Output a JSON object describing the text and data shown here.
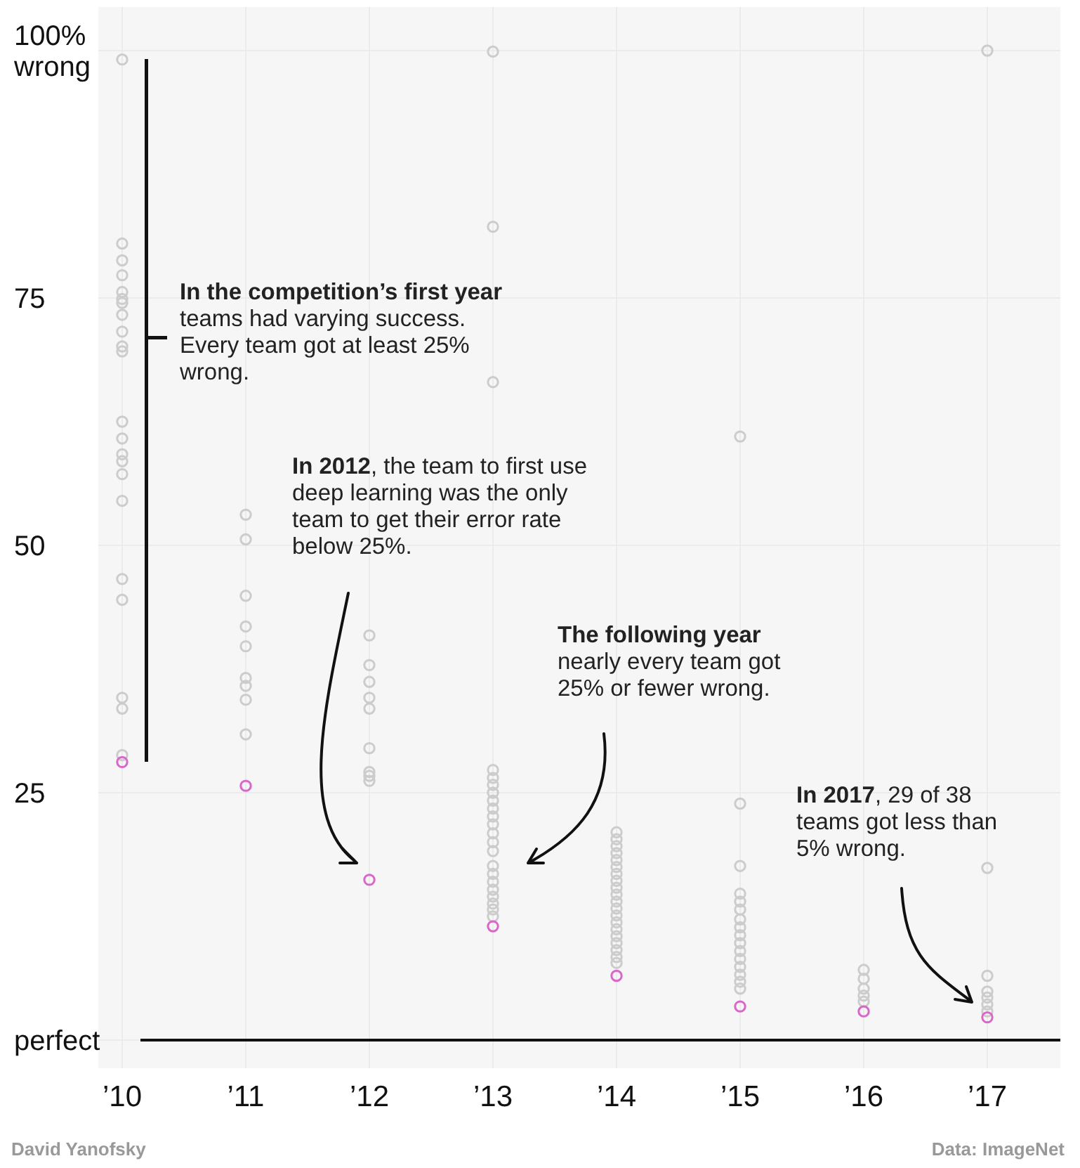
{
  "chart_data": {
    "type": "scatter",
    "categories": [
      "’10",
      "’11",
      "’12",
      "’13",
      "’14",
      "’15",
      "’16",
      "’17"
    ],
    "ylim": [
      0,
      100
    ],
    "yticks": [
      {
        "value": 0,
        "label": "perfect"
      },
      25,
      50,
      75,
      {
        "value": 100,
        "label": "100%\nwrong"
      }
    ],
    "grid": true,
    "marker": "circle",
    "series": [
      {
        "color": "#cccccc",
        "x": [
          "’10",
          "’10",
          "’10",
          "’10",
          "’10",
          "’10",
          "’10",
          "’10",
          "’10",
          "’10",
          "’10",
          "’10",
          "’10",
          "’10",
          "’10",
          "’10",
          "’10",
          "’10",
          "’10",
          "’10",
          "’10",
          "’10",
          "’11",
          "’11",
          "’11",
          "’11",
          "’11",
          "’11",
          "’11",
          "’11",
          "’11",
          "’12",
          "’12",
          "’12",
          "’12",
          "’12",
          "’12",
          "’12",
          "’12",
          "’12",
          "’13",
          "’13",
          "’13",
          "’13",
          "’13",
          "’13",
          "’13",
          "’13",
          "’13",
          "’13",
          "’13",
          "’13",
          "’13",
          "’13",
          "’13",
          "’13",
          "’13",
          "’13",
          "’13",
          "’13",
          "’13",
          "’13",
          "’14",
          "’14",
          "’14",
          "’14",
          "’14",
          "’14",
          "’14",
          "’14",
          "’14",
          "’14",
          "’14",
          "’14",
          "’14",
          "’14",
          "’14",
          "’14",
          "’14",
          "’14",
          "’14",
          "’14",
          "’15",
          "’15",
          "’15",
          "’15",
          "’15",
          "’15",
          "’15",
          "’15",
          "’15",
          "’15",
          "’15",
          "’15",
          "’15",
          "’15",
          "’15",
          "’15",
          "’16",
          "’16",
          "’16",
          "’16",
          "’16",
          "’17",
          "’17",
          "’17",
          "’17",
          "’17",
          "’17",
          "’17"
        ],
        "values": [
          99.1,
          80.5,
          78.8,
          77.3,
          75.6,
          74.9,
          74.5,
          73.3,
          71.6,
          70.1,
          69.6,
          62.5,
          60.8,
          59.2,
          58.5,
          57.2,
          54.5,
          46.6,
          44.5,
          34.6,
          33.5,
          28.8,
          53.1,
          50.6,
          44.9,
          41.8,
          39.8,
          36.6,
          35.8,
          34.4,
          30.9,
          40.9,
          37.9,
          36.2,
          34.6,
          33.5,
          29.5,
          27.1,
          26.7,
          26.2,
          99.9,
          82.2,
          66.5,
          27.3,
          26.5,
          25.8,
          25.0,
          24.2,
          23.4,
          22.6,
          21.8,
          20.9,
          20.0,
          19.1,
          17.6,
          16.8,
          16.0,
          15.2,
          14.5,
          13.8,
          13.2,
          12.5,
          21.0,
          20.3,
          19.6,
          18.9,
          18.2,
          17.5,
          16.8,
          16.1,
          15.4,
          14.7,
          14.0,
          13.3,
          12.6,
          11.9,
          11.2,
          10.5,
          9.8,
          9.1,
          8.4,
          7.8,
          61.0,
          23.9,
          17.6,
          14.8,
          14.0,
          13.2,
          12.2,
          11.4,
          10.6,
          9.8,
          9.0,
          8.2,
          7.4,
          6.6,
          5.9,
          5.2,
          7.1,
          6.2,
          5.2,
          4.5,
          3.9,
          100,
          17.4,
          6.5,
          4.9,
          4.3,
          3.6,
          2.9
        ]
      },
      {
        "color": "#d966c8",
        "x": [
          "’10",
          "’11",
          "’12",
          "’13",
          "’14",
          "’15",
          "’16",
          "’17"
        ],
        "values": [
          28.1,
          25.7,
          16.2,
          11.5,
          6.5,
          3.4,
          2.9,
          2.3
        ]
      }
    ],
    "annotations": [
      "In the competition’s first year",
      "teams had varying success.\nEvery team got at least 25%\nwrong.",
      "In 2012",
      ", the team to first use\ndeep learning was the only\nteam to get their error rate\nbelow 25%.",
      "The following year",
      "nearly every team got\n25% or fewer wrong.",
      "In 2017",
      ", 29 of 38\nteams got less than\n5% wrong.",
      "David Yanofsky",
      "Data: ImageNet"
    ]
  }
}
